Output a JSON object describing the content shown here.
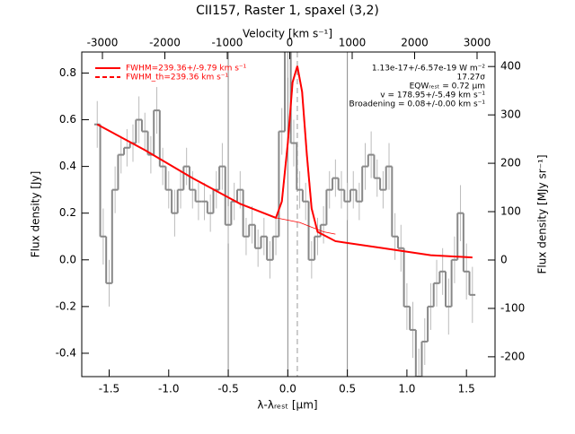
{
  "chart_data": {
    "type": "spectrum",
    "title": "CII157, Raster 1, spaxel (3,2)",
    "xlabel": "λ-λᵣₑₛₜ [μm]",
    "ylabel": "Flux density [Jy]",
    "y2label": "Flux density [MJy sr⁻¹]",
    "x2label": "Velocity [km s⁻¹]",
    "xlim": [
      -1.73,
      1.74
    ],
    "xticks": [
      -1.5,
      {
        "value": -1.0,
        "label": "-1.0"
      },
      -0.5,
      {
        "value": 0.0,
        "label": "0.0"
      },
      0.5,
      {
        "value": 1.0,
        "label": "1.0"
      },
      1.5
    ],
    "ylim": [
      -0.5,
      0.89
    ],
    "yticks": [
      -0.4,
      -0.2,
      {
        "value": 0.0,
        "label": "0.0"
      },
      0.2,
      0.4,
      0.6,
      0.8
    ],
    "y2lim": [
      -241,
      430
    ],
    "y2ticks": [
      -200,
      -100,
      0,
      100,
      200,
      300,
      400
    ],
    "x2lim": [
      -3331,
      3288
    ],
    "x2ticks": [
      -3000,
      -2000,
      -1000,
      0,
      1000,
      2000,
      3000
    ],
    "vlines": [
      -0.5,
      0,
      0.5
    ],
    "center_line": 0.08,
    "data": {
      "color": "#888888",
      "x": [
        -1.6,
        -1.55,
        -1.5,
        -1.45,
        -1.4,
        -1.35,
        -1.3,
        -1.25,
        -1.2,
        -1.15,
        -1.1,
        -1.05,
        -1.0,
        -0.95,
        -0.9,
        -0.85,
        -0.8,
        -0.75,
        -0.7,
        -0.65,
        -0.6,
        -0.55,
        -0.5,
        -0.45,
        -0.4,
        -0.35,
        -0.3,
        -0.25,
        -0.2,
        -0.15,
        -0.1,
        -0.05,
        0.0,
        0.05,
        0.1,
        0.15,
        0.2,
        0.25,
        0.3,
        0.35,
        0.4,
        0.45,
        0.5,
        0.55,
        0.6,
        0.65,
        0.7,
        0.75,
        0.8,
        0.85,
        0.9,
        0.95,
        1.0,
        1.05,
        1.1,
        1.15,
        1.2,
        1.25,
        1.3,
        1.35,
        1.4,
        1.45,
        1.5,
        1.55
      ],
      "values": [
        0.58,
        0.1,
        -0.1,
        0.3,
        0.45,
        0.48,
        0.5,
        0.6,
        0.55,
        0.45,
        0.64,
        0.4,
        0.3,
        0.2,
        0.3,
        0.4,
        0.3,
        0.25,
        0.25,
        0.2,
        0.3,
        0.4,
        0.15,
        0.25,
        0.3,
        0.1,
        0.15,
        0.05,
        0.1,
        0.0,
        0.1,
        0.55,
        0.9,
        0.5,
        0.3,
        0.25,
        0.0,
        0.1,
        0.15,
        0.3,
        0.35,
        0.3,
        0.25,
        0.3,
        0.25,
        0.4,
        0.45,
        0.35,
        0.3,
        0.4,
        0.1,
        0.05,
        -0.2,
        -0.3,
        -0.5,
        -0.35,
        -0.2,
        -0.1,
        -0.05,
        -0.2,
        0.0,
        0.2,
        -0.05,
        -0.15
      ],
      "errors": [
        0.1,
        0.12,
        0.1,
        0.1,
        0.08,
        0.08,
        0.08,
        0.1,
        0.08,
        0.08,
        0.1,
        0.08,
        0.08,
        0.1,
        0.08,
        0.08,
        0.08,
        0.08,
        0.08,
        0.08,
        0.08,
        0.1,
        0.08,
        0.08,
        0.08,
        0.08,
        0.08,
        0.08,
        0.08,
        0.08,
        0.08,
        0.1,
        0.12,
        0.1,
        0.08,
        0.08,
        0.08,
        0.08,
        0.08,
        0.08,
        0.08,
        0.08,
        0.08,
        0.08,
        0.08,
        0.1,
        0.1,
        0.08,
        0.08,
        0.1,
        0.1,
        0.1,
        0.1,
        0.12,
        0.12,
        0.1,
        0.1,
        0.1,
        0.1,
        0.12,
        0.1,
        0.12,
        0.12,
        0.12
      ]
    },
    "series": [
      {
        "name": "FWHM=239.36+/-9.79 km s⁻¹",
        "color": "#ff0000",
        "dash": false,
        "x": [
          -1.6,
          -1.2,
          -0.8,
          -0.4,
          -0.1,
          -0.05,
          0,
          0.04,
          0.08,
          0.12,
          0.16,
          0.2,
          0.25,
          0.4,
          0.8,
          1.2,
          1.55
        ],
        "values": [
          0.58,
          0.47,
          0.35,
          0.24,
          0.18,
          0.25,
          0.5,
          0.76,
          0.83,
          0.72,
          0.45,
          0.22,
          0.12,
          0.08,
          0.05,
          0.02,
          0.01
        ]
      },
      {
        "name": "FWHM_th=239.36 km s⁻¹",
        "color": "#ff0000",
        "dash": true,
        "x": [
          -0.1,
          -0.05,
          0,
          0.04,
          0.08,
          0.12,
          0.16,
          0.2,
          0.25
        ],
        "values": [
          0.18,
          0.25,
          0.5,
          0.76,
          0.83,
          0.72,
          0.45,
          0.22,
          0.12
        ]
      }
    ],
    "continuum": {
      "color": "#ff0000",
      "x": [
        -0.1,
        0,
        0.1,
        0.2,
        0.3,
        0.4
      ],
      "values": [
        0.18,
        0.17,
        0.16,
        0.14,
        0.12,
        0.11
      ]
    },
    "annotations": [
      "1.13e-17+/-6.57e-19 W m⁻²",
      "17.27σ",
      "EQWᵣₑₛₜ = 0.72 μm",
      "v = 178.95+/-5.49 km s⁻¹",
      "Broadening = 0.08+/-0.00 km s⁻¹"
    ]
  }
}
